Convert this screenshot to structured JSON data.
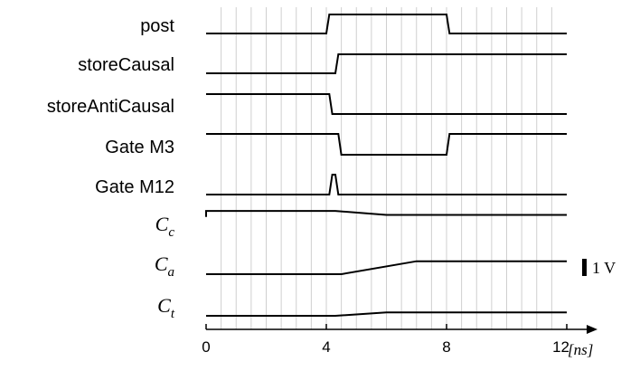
{
  "chart_data": {
    "type": "line",
    "title": "",
    "xlabel": "[ns]",
    "ylabel": "",
    "xlim": [
      0,
      12
    ],
    "x_ticks": [
      0,
      4,
      8,
      12
    ],
    "x_tick_labels": [
      "0",
      "4",
      "8",
      "12"
    ],
    "grid": "vertical, every 0.5 ns",
    "scale_bar": {
      "label": "1 V"
    },
    "series": [
      {
        "name": "post",
        "label_style": "sans",
        "x": [
          0,
          4.0,
          4.1,
          8.0,
          8.1,
          12
        ],
        "y": [
          0,
          0,
          1,
          1,
          0,
          0
        ]
      },
      {
        "name": "storeCausal",
        "label_style": "sans",
        "x": [
          0,
          4.3,
          4.4,
          12
        ],
        "y": [
          0,
          0,
          1,
          1
        ]
      },
      {
        "name": "storeAntiCausal",
        "label_style": "sans",
        "x": [
          0,
          4.1,
          4.2,
          12
        ],
        "y": [
          1,
          1,
          0,
          0
        ]
      },
      {
        "name": "Gate M3",
        "label_style": "sans",
        "x": [
          0,
          4.4,
          4.5,
          8.0,
          8.1,
          12
        ],
        "y": [
          1,
          1,
          0,
          0,
          1,
          1
        ]
      },
      {
        "name": "Gate M12",
        "label_style": "sans",
        "x": [
          0,
          4.1,
          4.2,
          4.3,
          4.4,
          12
        ],
        "y": [
          0,
          0,
          1,
          1,
          0,
          0
        ]
      },
      {
        "name": "C",
        "subscript": "c",
        "label_style": "math",
        "x": [
          0,
          0,
          4.3,
          6.0,
          12
        ],
        "y": [
          0.65,
          0.95,
          0.95,
          0.75,
          0.75
        ]
      },
      {
        "name": "C",
        "subscript": "a",
        "label_style": "math",
        "x": [
          0,
          4.5,
          7.0,
          12
        ],
        "y": [
          0,
          0,
          0.68,
          0.68
        ]
      },
      {
        "name": "C",
        "subscript": "t",
        "label_style": "math",
        "x": [
          0,
          4.3,
          6.0,
          12
        ],
        "y": [
          0,
          0,
          0.17,
          0.17
        ]
      }
    ]
  }
}
